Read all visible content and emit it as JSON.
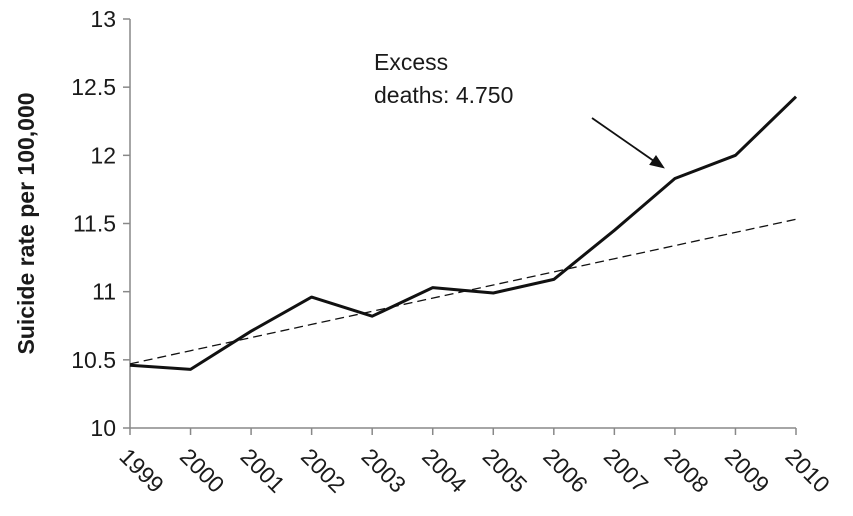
{
  "chart_data": {
    "type": "line",
    "x": [
      "1999",
      "2000",
      "2001",
      "2002",
      "2003",
      "2004",
      "2005",
      "2006",
      "2007",
      "2008",
      "2009",
      "2010"
    ],
    "series": [
      {
        "values": [
          10.46,
          10.43,
          10.71,
          10.96,
          10.82,
          11.03,
          10.99,
          11.09,
          11.45,
          11.83,
          12.0,
          12.43
        ],
        "style": "solid"
      },
      {
        "values": [
          10.47,
          10.567,
          10.663,
          10.76,
          10.856,
          10.953,
          11.049,
          11.145,
          11.242,
          11.338,
          11.435,
          11.531
        ],
        "style": "dashed"
      }
    ],
    "ylabel": "Suicide rate per 100,000",
    "xlabel": "",
    "ylim": [
      10,
      13
    ],
    "yticks": [
      "10",
      "10.5",
      "11",
      "11.5",
      "12",
      "12.5",
      "13"
    ],
    "grid": false,
    "annotation": {
      "lines": [
        "Excess",
        "deaths: 4.750"
      ],
      "points_to": "2008"
    },
    "colors": {
      "line": "#111111",
      "axis": "#888888"
    }
  }
}
